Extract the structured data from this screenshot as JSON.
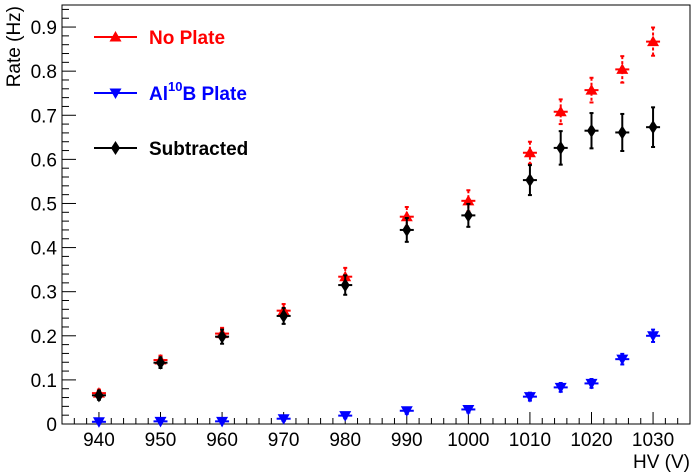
{
  "chart_data": {
    "type": "scatter",
    "title": "",
    "xlabel": "HV (V)",
    "ylabel": "Rate (Hz)",
    "xlim": [
      934,
      1036
    ],
    "ylim": [
      0,
      0.95
    ],
    "xticks": [
      940,
      950,
      960,
      970,
      980,
      990,
      1000,
      1010,
      1020,
      1030
    ],
    "yticks": [
      0,
      0.1,
      0.2,
      0.3,
      0.4,
      0.5,
      0.6,
      0.7,
      0.8,
      0.9
    ],
    "legend_position": "top-left",
    "series": [
      {
        "name": "No Plate",
        "color": "#ff0000",
        "marker": "triangle-up",
        "x": [
          940,
          950,
          960,
          970,
          980,
          990,
          1000,
          1010,
          1015,
          1020,
          1025,
          1030
        ],
        "y": [
          0.07,
          0.145,
          0.205,
          0.257,
          0.334,
          0.47,
          0.506,
          0.615,
          0.708,
          0.757,
          0.804,
          0.867
        ],
        "err": [
          0.008,
          0.01,
          0.013,
          0.015,
          0.02,
          0.022,
          0.024,
          0.025,
          0.028,
          0.028,
          0.03,
          0.032
        ]
      },
      {
        "name": "Al",
        "name_sup": "10",
        "name_suffix": "B Plate",
        "color": "#0000ff",
        "marker": "triangle-down",
        "x": [
          940,
          950,
          960,
          970,
          980,
          990,
          1000,
          1010,
          1015,
          1020,
          1025,
          1030
        ],
        "y": [
          0.005,
          0.006,
          0.006,
          0.012,
          0.019,
          0.03,
          0.033,
          0.062,
          0.083,
          0.092,
          0.147,
          0.2
        ],
        "err": [
          0.004,
          0.004,
          0.004,
          0.005,
          0.006,
          0.007,
          0.007,
          0.009,
          0.01,
          0.01,
          0.012,
          0.014
        ]
      },
      {
        "name": "Subtracted",
        "color": "#000000",
        "marker": "diamond",
        "x": [
          940,
          950,
          960,
          970,
          980,
          990,
          1000,
          1010,
          1015,
          1020,
          1025,
          1030
        ],
        "y": [
          0.065,
          0.139,
          0.198,
          0.245,
          0.315,
          0.44,
          0.473,
          0.553,
          0.626,
          0.665,
          0.661,
          0.673
        ],
        "err": [
          0.01,
          0.012,
          0.016,
          0.018,
          0.022,
          0.027,
          0.026,
          0.034,
          0.038,
          0.04,
          0.042,
          0.045
        ]
      }
    ]
  }
}
